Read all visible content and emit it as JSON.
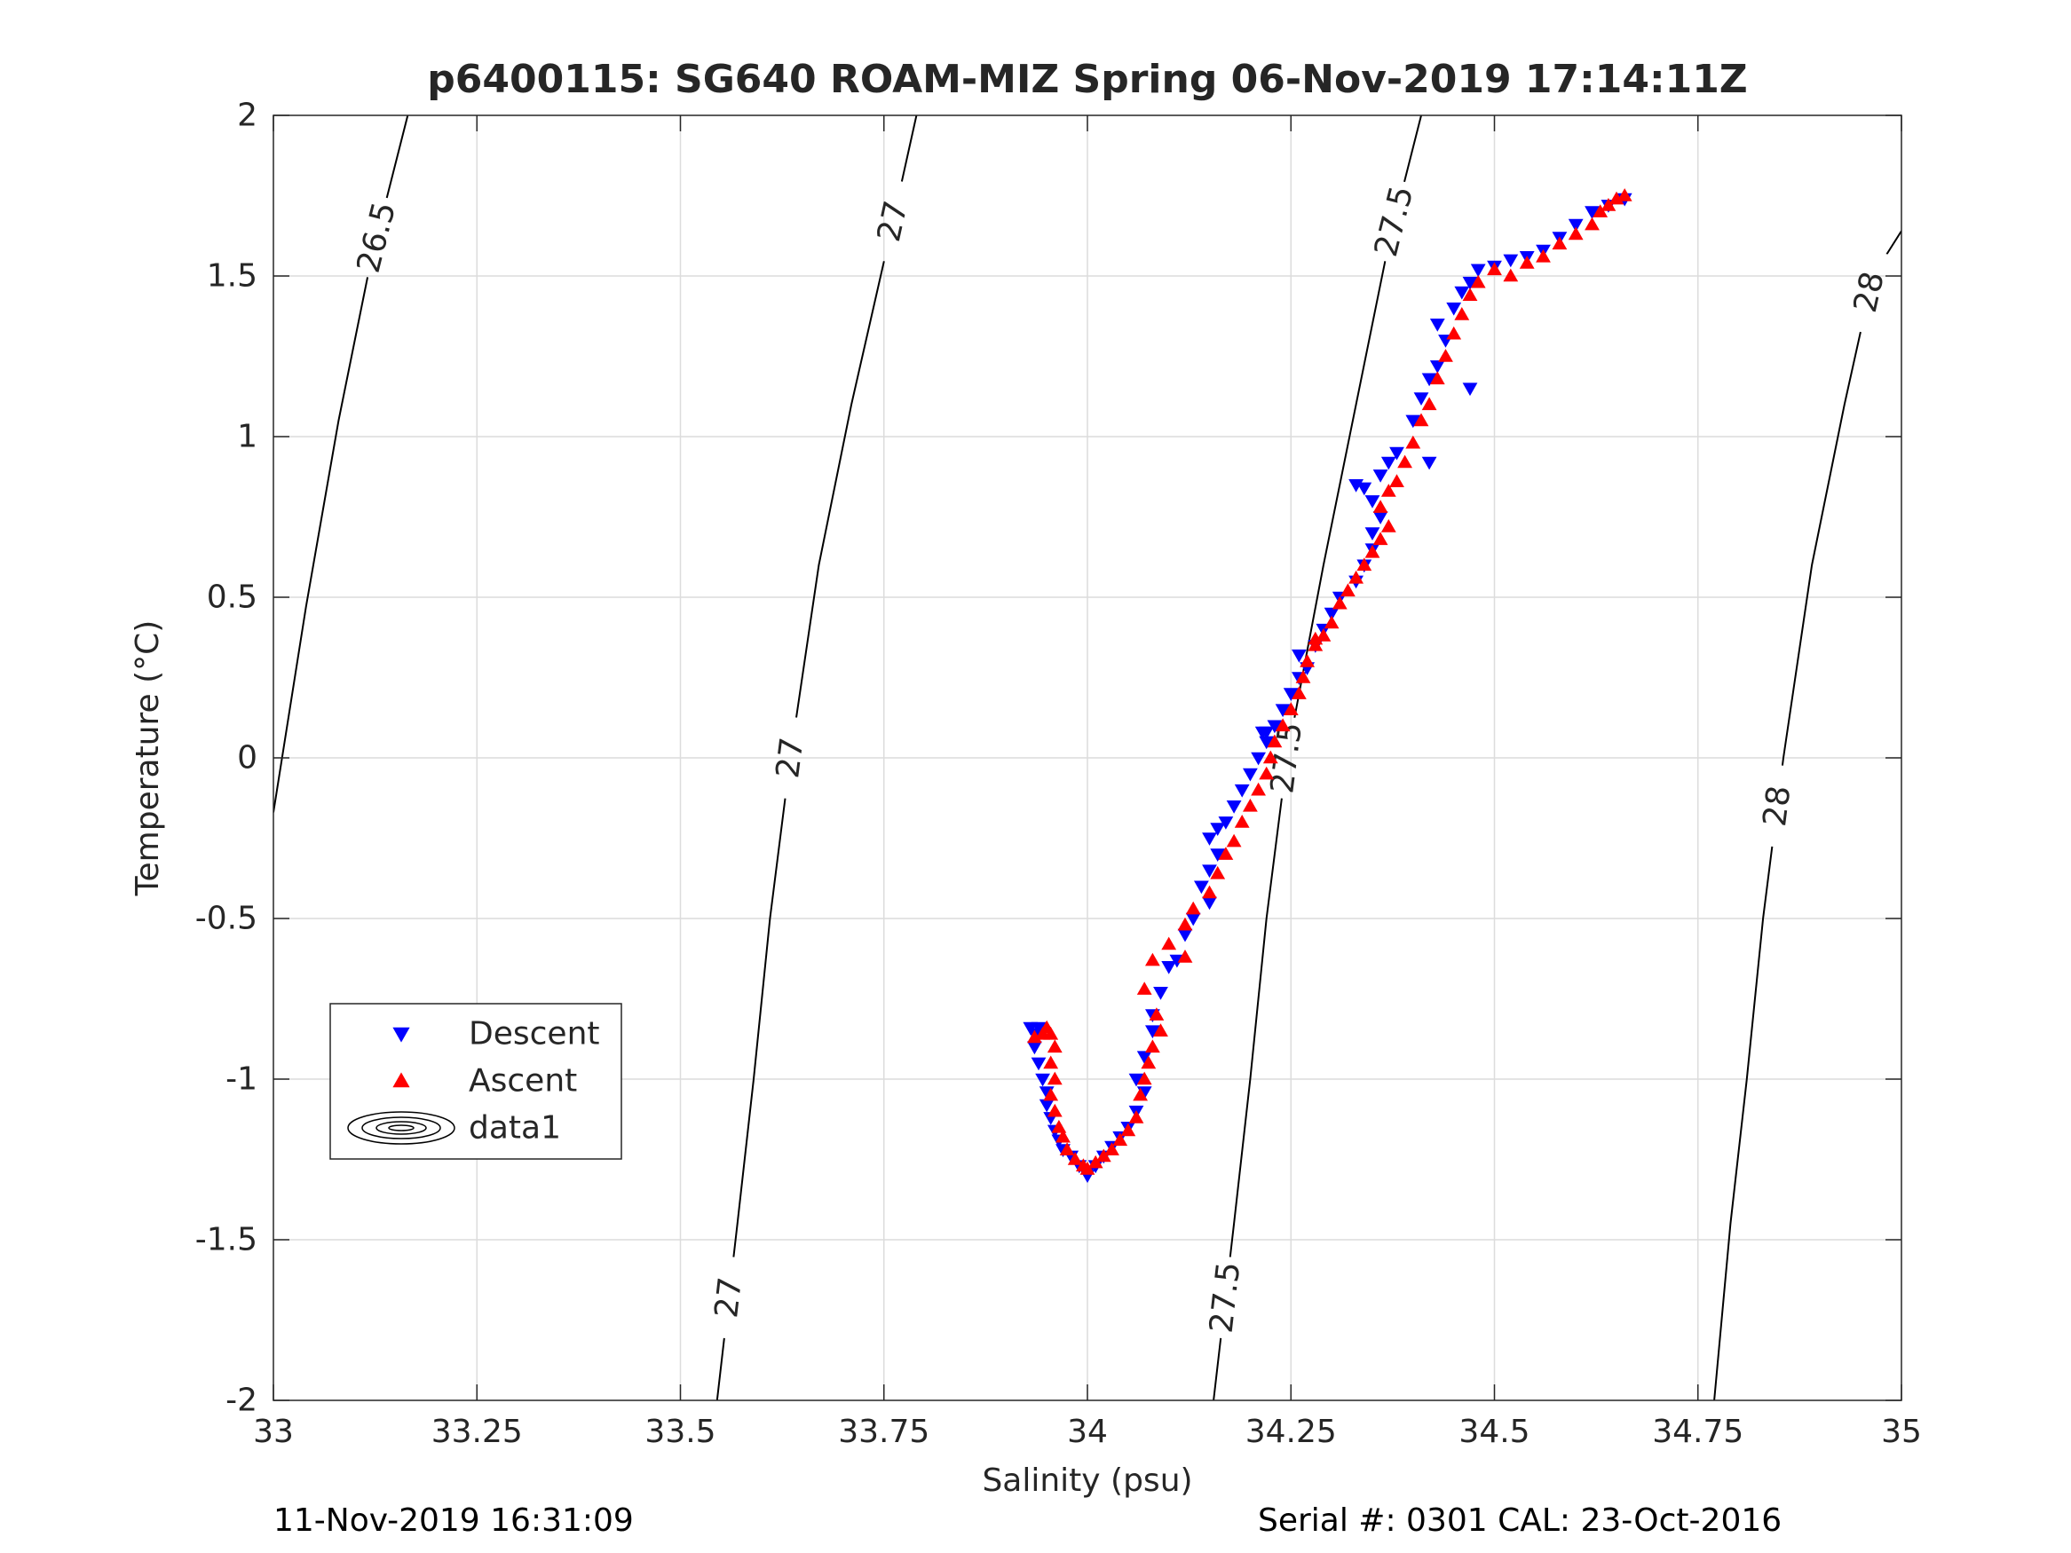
{
  "chart_data": {
    "type": "scatter",
    "title": "p6400115: SG640 ROAM-MIZ Spring 06-Nov-2019 17:14:11Z",
    "xlabel": "Salinity (psu)",
    "ylabel": "Temperature (°C)",
    "xlim": [
      33,
      35
    ],
    "ylim": [
      -2,
      2
    ],
    "x_ticks": [
      33,
      33.25,
      33.5,
      33.75,
      34,
      34.25,
      34.5,
      34.75,
      35
    ],
    "x_tick_labels": [
      "33",
      "33.25",
      "33.5",
      "33.75",
      "34",
      "34.25",
      "34.5",
      "34.75",
      "35"
    ],
    "y_ticks": [
      2,
      1.5,
      1,
      0.5,
      0,
      -0.5,
      -1,
      -1.5,
      -2
    ],
    "y_tick_labels": [
      "2",
      "1.5",
      "1",
      "0.5",
      "0",
      "-0.5",
      "-1",
      "-1.5",
      "-2"
    ],
    "grid": true,
    "legend_position": "lower-left",
    "series": [
      {
        "name": "Descent",
        "marker": "triangle-down",
        "color": "#0000ff",
        "points": [
          [
            33.93,
            -0.84
          ],
          [
            33.935,
            -0.86
          ],
          [
            33.94,
            -0.84
          ],
          [
            33.935,
            -0.9
          ],
          [
            33.94,
            -0.95
          ],
          [
            33.945,
            -1.0
          ],
          [
            33.95,
            -1.04
          ],
          [
            33.95,
            -1.08
          ],
          [
            33.955,
            -1.12
          ],
          [
            33.96,
            -1.16
          ],
          [
            33.965,
            -1.19
          ],
          [
            33.97,
            -1.22
          ],
          [
            33.98,
            -1.24
          ],
          [
            33.99,
            -1.27
          ],
          [
            34.0,
            -1.29
          ],
          [
            34.0,
            -1.3
          ],
          [
            34.01,
            -1.27
          ],
          [
            34.02,
            -1.24
          ],
          [
            34.03,
            -1.21
          ],
          [
            34.04,
            -1.18
          ],
          [
            34.05,
            -1.15
          ],
          [
            34.06,
            -1.1
          ],
          [
            34.07,
            -1.04
          ],
          [
            34.06,
            -1.0
          ],
          [
            34.07,
            -0.93
          ],
          [
            34.08,
            -0.85
          ],
          [
            34.08,
            -0.8
          ],
          [
            34.09,
            -0.73
          ],
          [
            34.1,
            -0.65
          ],
          [
            34.11,
            -0.63
          ],
          [
            34.12,
            -0.55
          ],
          [
            34.13,
            -0.5
          ],
          [
            34.15,
            -0.45
          ],
          [
            34.14,
            -0.4
          ],
          [
            34.15,
            -0.35
          ],
          [
            34.16,
            -0.3
          ],
          [
            34.15,
            -0.25
          ],
          [
            34.16,
            -0.22
          ],
          [
            34.17,
            -0.2
          ],
          [
            34.18,
            -0.15
          ],
          [
            34.19,
            -0.1
          ],
          [
            34.2,
            -0.05
          ],
          [
            34.21,
            0.0
          ],
          [
            34.22,
            0.05
          ],
          [
            34.215,
            0.08
          ],
          [
            34.23,
            0.1
          ],
          [
            34.24,
            0.15
          ],
          [
            34.25,
            0.2
          ],
          [
            34.26,
            0.25
          ],
          [
            34.27,
            0.28
          ],
          [
            34.26,
            0.32
          ],
          [
            34.28,
            0.35
          ],
          [
            34.29,
            0.4
          ],
          [
            34.3,
            0.45
          ],
          [
            34.31,
            0.5
          ],
          [
            34.33,
            0.55
          ],
          [
            34.34,
            0.6
          ],
          [
            34.35,
            0.65
          ],
          [
            34.35,
            0.7
          ],
          [
            34.36,
            0.75
          ],
          [
            34.35,
            0.8
          ],
          [
            34.34,
            0.84
          ],
          [
            34.33,
            0.85
          ],
          [
            34.36,
            0.88
          ],
          [
            34.37,
            0.92
          ],
          [
            34.38,
            0.95
          ],
          [
            34.42,
            0.92
          ],
          [
            34.4,
            1.05
          ],
          [
            34.41,
            1.12
          ],
          [
            34.42,
            1.18
          ],
          [
            34.43,
            1.22
          ],
          [
            34.44,
            1.3
          ],
          [
            34.43,
            1.35
          ],
          [
            34.45,
            1.4
          ],
          [
            34.46,
            1.45
          ],
          [
            34.47,
            1.48
          ],
          [
            34.48,
            1.52
          ],
          [
            34.5,
            1.53
          ],
          [
            34.52,
            1.55
          ],
          [
            34.54,
            1.56
          ],
          [
            34.56,
            1.58
          ],
          [
            34.58,
            1.62
          ],
          [
            34.6,
            1.66
          ],
          [
            34.62,
            1.7
          ],
          [
            34.64,
            1.72
          ],
          [
            34.66,
            1.74
          ],
          [
            34.47,
            1.15
          ],
          [
            34.22,
            0.08
          ]
        ]
      },
      {
        "name": "Ascent",
        "marker": "triangle-up",
        "color": "#ff0000",
        "points": [
          [
            33.935,
            -0.87
          ],
          [
            33.945,
            -0.86
          ],
          [
            33.95,
            -0.84
          ],
          [
            33.955,
            -0.86
          ],
          [
            33.96,
            -0.9
          ],
          [
            33.955,
            -0.95
          ],
          [
            33.96,
            -1.0
          ],
          [
            33.955,
            -1.05
          ],
          [
            33.96,
            -1.1
          ],
          [
            33.965,
            -1.15
          ],
          [
            33.97,
            -1.18
          ],
          [
            33.975,
            -1.22
          ],
          [
            33.985,
            -1.25
          ],
          [
            33.995,
            -1.27
          ],
          [
            34.0,
            -1.28
          ],
          [
            34.01,
            -1.26
          ],
          [
            34.02,
            -1.24
          ],
          [
            34.03,
            -1.22
          ],
          [
            34.04,
            -1.19
          ],
          [
            34.05,
            -1.16
          ],
          [
            34.06,
            -1.12
          ],
          [
            34.065,
            -1.05
          ],
          [
            34.07,
            -1.0
          ],
          [
            34.075,
            -0.95
          ],
          [
            34.08,
            -0.9
          ],
          [
            34.09,
            -0.85
          ],
          [
            34.085,
            -0.8
          ],
          [
            34.07,
            -0.72
          ],
          [
            34.08,
            -0.63
          ],
          [
            34.1,
            -0.58
          ],
          [
            34.12,
            -0.52
          ],
          [
            34.13,
            -0.47
          ],
          [
            34.15,
            -0.42
          ],
          [
            34.16,
            -0.36
          ],
          [
            34.17,
            -0.3
          ],
          [
            34.18,
            -0.26
          ],
          [
            34.19,
            -0.2
          ],
          [
            34.2,
            -0.15
          ],
          [
            34.21,
            -0.1
          ],
          [
            34.22,
            -0.05
          ],
          [
            34.225,
            0.0
          ],
          [
            34.23,
            0.05
          ],
          [
            34.24,
            0.1
          ],
          [
            34.25,
            0.15
          ],
          [
            34.26,
            0.2
          ],
          [
            34.265,
            0.25
          ],
          [
            34.27,
            0.3
          ],
          [
            34.28,
            0.35
          ],
          [
            34.29,
            0.38
          ],
          [
            34.3,
            0.42
          ],
          [
            34.31,
            0.48
          ],
          [
            34.32,
            0.52
          ],
          [
            34.33,
            0.56
          ],
          [
            34.34,
            0.6
          ],
          [
            34.35,
            0.64
          ],
          [
            34.36,
            0.68
          ],
          [
            34.37,
            0.72
          ],
          [
            34.36,
            0.78
          ],
          [
            34.37,
            0.83
          ],
          [
            34.38,
            0.86
          ],
          [
            34.39,
            0.92
          ],
          [
            34.4,
            0.98
          ],
          [
            34.41,
            1.05
          ],
          [
            34.42,
            1.1
          ],
          [
            34.43,
            1.18
          ],
          [
            34.44,
            1.25
          ],
          [
            34.45,
            1.32
          ],
          [
            34.46,
            1.38
          ],
          [
            34.47,
            1.44
          ],
          [
            34.48,
            1.48
          ],
          [
            34.5,
            1.52
          ],
          [
            34.52,
            1.5
          ],
          [
            34.54,
            1.54
          ],
          [
            34.56,
            1.56
          ],
          [
            34.58,
            1.6
          ],
          [
            34.6,
            1.63
          ],
          [
            34.62,
            1.66
          ],
          [
            34.63,
            1.7
          ],
          [
            34.64,
            1.72
          ],
          [
            34.65,
            1.74
          ],
          [
            34.66,
            1.75
          ],
          [
            34.28,
            0.37
          ],
          [
            34.12,
            -0.62
          ]
        ]
      }
    ],
    "density_contours": {
      "legend_label": "data1",
      "lines": [
        {
          "level": "26.5",
          "points": [
            [
              33.0,
              -0.17
            ],
            [
              33.04,
              0.47
            ],
            [
              33.08,
              1.05
            ],
            [
              33.12,
              1.55
            ],
            [
              33.165,
              2.0
            ]
          ],
          "labels": [
            [
              33.13,
              1.62
            ]
          ]
        },
        {
          "level": "27",
          "points": [
            [
              33.545,
              -2.0
            ],
            [
              33.57,
              -1.45
            ],
            [
              33.59,
              -1.0
            ],
            [
              33.61,
              -0.5
            ],
            [
              33.635,
              0.0
            ],
            [
              33.67,
              0.6
            ],
            [
              33.71,
              1.1
            ],
            [
              33.755,
              1.6
            ],
            [
              33.79,
              2.0
            ]
          ],
          "labels": [
            [
              33.555,
              -1.68
            ],
            [
              33.63,
              0.0
            ],
            [
              33.765,
              1.67
            ]
          ]
        },
        {
          "level": "27.5",
          "points": [
            [
              34.155,
              -2.0
            ],
            [
              34.18,
              -1.45
            ],
            [
              34.2,
              -1.0
            ],
            [
              34.22,
              -0.5
            ],
            [
              34.245,
              0.0
            ],
            [
              34.29,
              0.6
            ],
            [
              34.33,
              1.1
            ],
            [
              34.37,
              1.6
            ],
            [
              34.41,
              2.0
            ]
          ],
          "labels": [
            [
              34.165,
              -1.68
            ],
            [
              34.245,
              0.0
            ],
            [
              34.38,
              1.67
            ]
          ]
        },
        {
          "level": "28",
          "points": [
            [
              34.77,
              -2.0
            ],
            [
              34.79,
              -1.45
            ],
            [
              34.81,
              -1.0
            ],
            [
              34.83,
              -0.5
            ],
            [
              34.855,
              0.0
            ],
            [
              34.89,
              0.6
            ],
            [
              34.93,
              1.1
            ],
            [
              34.965,
              1.5
            ],
            [
              35.0,
              1.64
            ]
          ],
          "labels": [
            [
              34.855,
              -0.15
            ],
            [
              34.975,
              1.45
            ]
          ]
        }
      ]
    },
    "legend": [
      {
        "name": "Descent",
        "marker": "triangle-down",
        "color": "#0000ff"
      },
      {
        "name": "Ascent",
        "marker": "triangle-up",
        "color": "#ff0000"
      },
      {
        "name": "data1",
        "marker": "contour-ellipses",
        "color": "#000000"
      }
    ]
  },
  "footer": {
    "timestamp": "11-Nov-2019 16:31:09",
    "serial": "Serial #: 0301  CAL: 23-Oct-2016"
  }
}
